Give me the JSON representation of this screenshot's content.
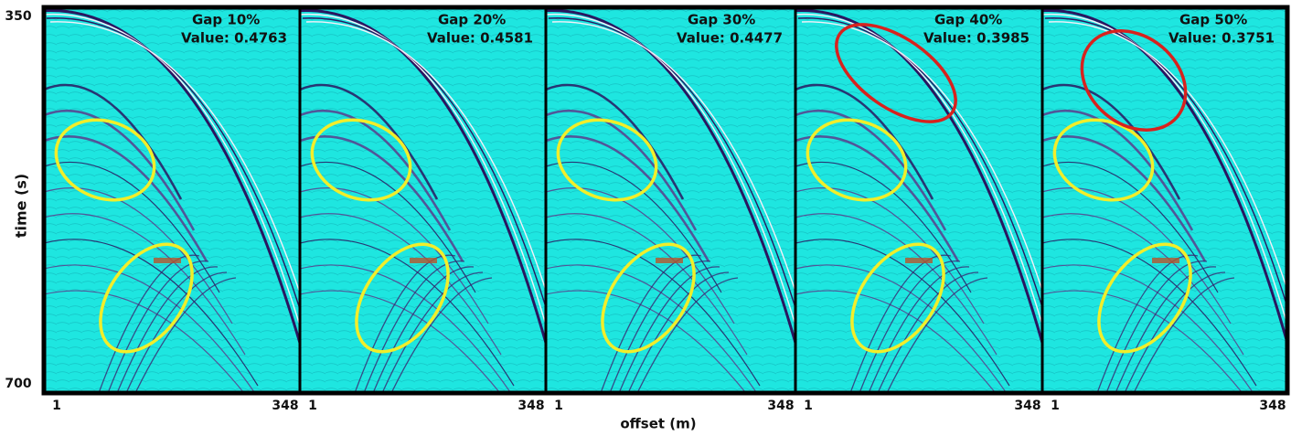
{
  "y_axis": {
    "label": "time (s)",
    "ticks": [
      "350",
      "700"
    ]
  },
  "x_axis": {
    "label": "offset (m)"
  },
  "panels": [
    {
      "gap": "Gap 10%",
      "value": "Value: 0.4763",
      "x_start": "1",
      "x_end": "348"
    },
    {
      "gap": "Gap 20%",
      "value": "Value: 0.4581",
      "x_start": "1",
      "x_end": "348"
    },
    {
      "gap": "Gap 30%",
      "value": "Value: 0.4477",
      "x_start": "1",
      "x_end": "348"
    },
    {
      "gap": "Gap 40%",
      "value": "Value: 0.3985",
      "x_start": "1",
      "x_end": "348"
    },
    {
      "gap": "Gap 50%",
      "value": "Value: 0.3751",
      "x_start": "1",
      "x_end": "348"
    }
  ]
}
